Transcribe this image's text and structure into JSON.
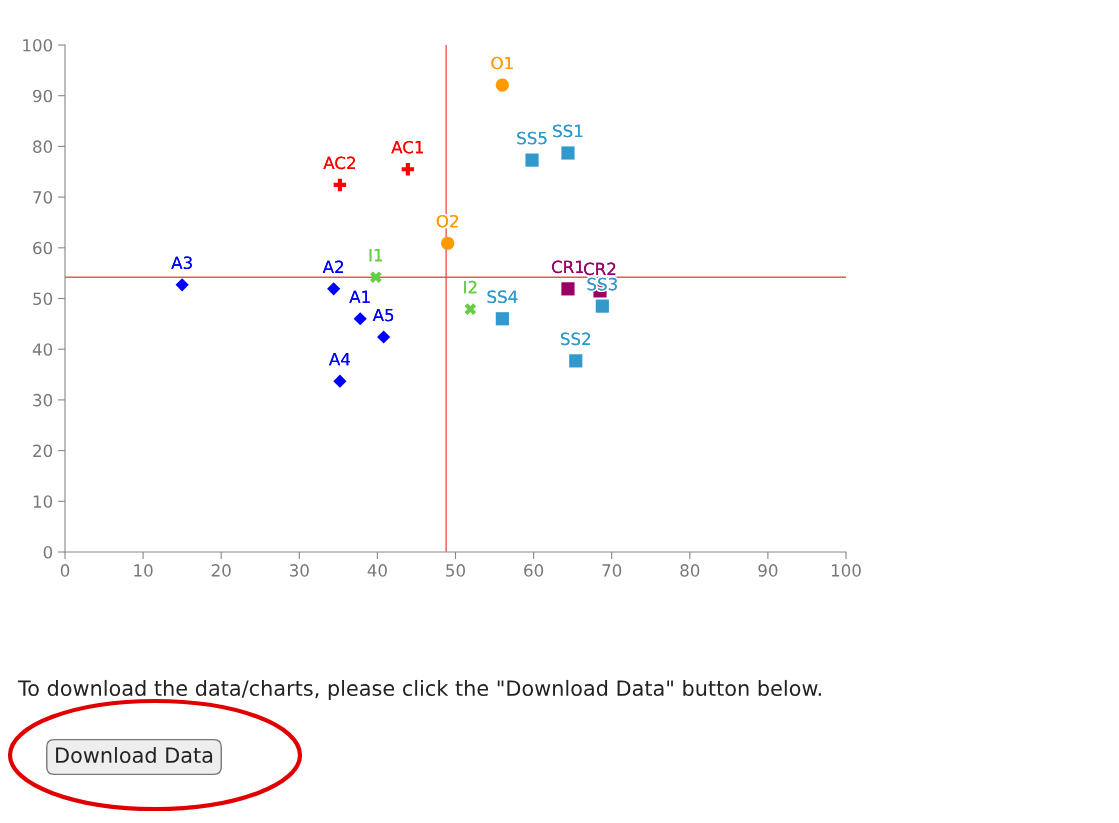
{
  "chart_data": {
    "type": "scatter",
    "xlim": [
      0,
      100
    ],
    "ylim": [
      0,
      100
    ],
    "xticks": [
      0,
      10,
      20,
      30,
      40,
      50,
      60,
      70,
      80,
      90,
      100
    ],
    "yticks": [
      0,
      10,
      20,
      30,
      40,
      50,
      60,
      70,
      80,
      90,
      100
    ],
    "grid": false,
    "legend": false,
    "series": [
      {
        "color": "#0000ff",
        "marker": "diamond",
        "x": [
          15.0,
          34.4,
          37.8,
          40.8,
          35.2
        ],
        "values": [
          52.7,
          51.9,
          46.0,
          42.4,
          33.7
        ],
        "value_labels": [
          "A3",
          "A2",
          "A1",
          "A5",
          "A4"
        ]
      },
      {
        "color": "#ff0000",
        "marker": "plus",
        "x": [
          35.2,
          43.9
        ],
        "values": [
          72.4,
          75.5
        ],
        "value_labels": [
          "AC2",
          "AC1"
        ]
      },
      {
        "color": "#66cc44",
        "marker": "cross",
        "x": [
          39.8,
          51.9
        ],
        "values": [
          54.2,
          47.9
        ],
        "value_labels": [
          "I1",
          "I2"
        ]
      },
      {
        "color": "#ff9900",
        "marker": "circle",
        "x": [
          56.0,
          49.0
        ],
        "values": [
          92.1,
          60.9
        ],
        "value_labels": [
          "O1",
          "O2"
        ]
      },
      {
        "color": "#3399cc",
        "marker": "square",
        "x": [
          59.8,
          64.4,
          56.0,
          65.4,
          68.8
        ],
        "values": [
          77.3,
          78.7,
          46.0,
          37.7,
          48.5
        ],
        "value_labels": [
          "SS5",
          "SS1",
          "SS4",
          "SS2",
          "SS3"
        ]
      },
      {
        "color": "#990066",
        "marker": "square",
        "x": [
          64.4,
          68.5
        ],
        "values": [
          51.9,
          51.5
        ],
        "value_labels": [
          "CR1",
          "CR2"
        ]
      }
    ],
    "ref_lines": [
      {
        "axis": "x",
        "value": 48.8,
        "color": "#ee5555"
      },
      {
        "axis": "y",
        "value": 54.2,
        "color": "#ee5555"
      }
    ],
    "annotations": [
      "To download the data/charts, please click the \"Download Data\" button below.",
      "Download Data"
    ]
  }
}
